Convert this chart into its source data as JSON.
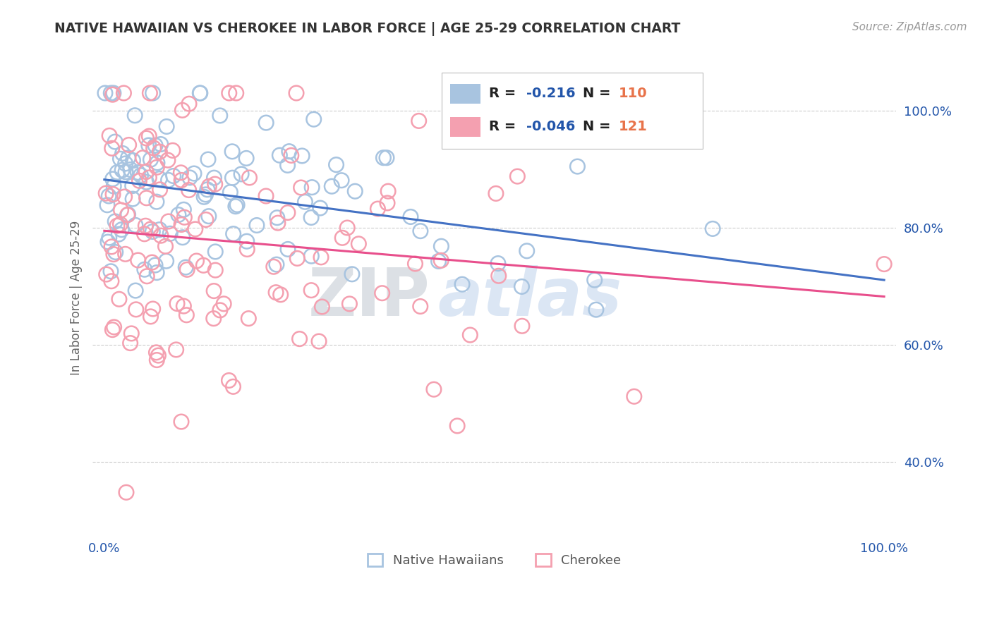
{
  "title": "NATIVE HAWAIIAN VS CHEROKEE IN LABOR FORCE | AGE 25-29 CORRELATION CHART",
  "source": "Source: ZipAtlas.com",
  "ylabel": "In Labor Force | Age 25-29",
  "legend_native": "Native Hawaiians",
  "legend_cherokee": "Cherokee",
  "R_native": "-0.216",
  "N_native": "110",
  "R_cherokee": "-0.046",
  "N_cherokee": "121",
  "native_color": "#a8c4e0",
  "cherokee_color": "#f4a0b0",
  "native_line_color": "#4472c4",
  "cherokee_line_color": "#e84f8c",
  "background_color": "#ffffff",
  "grid_color": "#cccccc",
  "title_color": "#333333",
  "label_color": "#666666",
  "blue_text_color": "#2255aa",
  "orange_text_color": "#e8734a",
  "watermark_zip_color": "#c0c8d0",
  "watermark_atlas_color": "#b0c8e8"
}
